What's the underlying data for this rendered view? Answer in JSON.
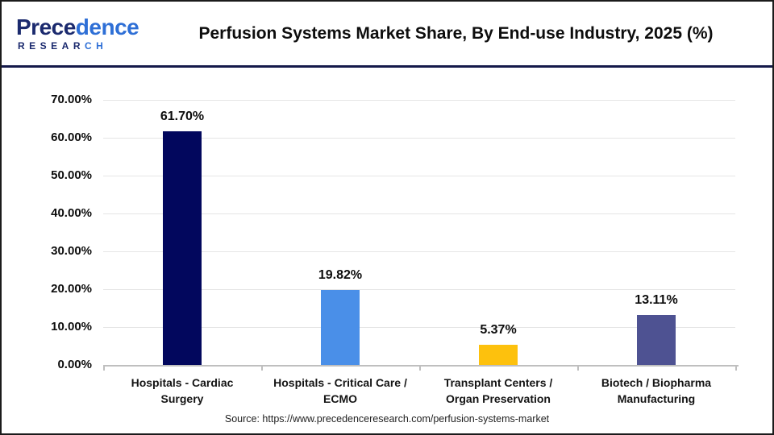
{
  "header": {
    "logo": {
      "name_part1": "Prece",
      "name_part2": "dence",
      "sub_part1": "RESEAR",
      "sub_part2": "CH"
    },
    "title": "Perfusion Systems Market Share, By End-use Industry, 2025 (%)"
  },
  "chart_data": {
    "type": "bar",
    "title": "Perfusion Systems Market Share, By End-use Industry, 2025 (%)",
    "categories": [
      "Hospitals - Cardiac Surgery",
      "Hospitals - Critical Care / ECMO",
      "Transplant Centers / Organ Preservation",
      "Biotech / Biopharma Manufacturing"
    ],
    "category_lines": [
      [
        "Hospitals - Cardiac",
        "Surgery"
      ],
      [
        "Hospitals - Critical Care /",
        "ECMO"
      ],
      [
        "Transplant Centers /",
        "Organ Preservation"
      ],
      [
        "Biotech / Biopharma",
        "Manufacturing"
      ]
    ],
    "values": [
      61.7,
      19.82,
      5.37,
      13.11
    ],
    "value_labels": [
      "61.70%",
      "19.82%",
      "5.37%",
      "13.11%"
    ],
    "bar_colors": [
      "#02075d",
      "#4a8fe8",
      "#fdc10d",
      "#4e5292"
    ],
    "xlabel": "",
    "ylabel": "",
    "ylim": [
      0,
      70
    ],
    "ytick_step": 10,
    "ytick_labels": [
      "0.00%",
      "10.00%",
      "20.00%",
      "30.00%",
      "40.00%",
      "50.00%",
      "60.00%",
      "70.00%"
    ],
    "grid": true,
    "legend": false
  },
  "footer": {
    "source": "Source: https://www.precedenceresearch.com/perfusion-systems-market"
  },
  "colors": {
    "header_divider": "#14194a",
    "logo_navy": "#1b2a6e",
    "logo_blue": "#2e6fd6",
    "gridline": "#e5e5e5",
    "axis_line": "#bfbfbf",
    "text": "#0d0d0d"
  }
}
